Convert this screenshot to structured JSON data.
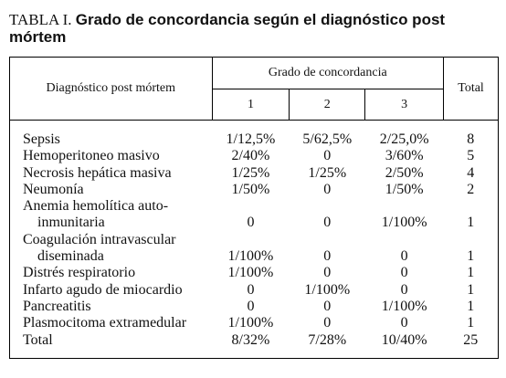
{
  "title": {
    "label": "TABLA I.",
    "text": "Grado de concordancia según el diagnóstico post mórtem"
  },
  "table": {
    "header": {
      "diagnosis": "Diagnóstico post mórtem",
      "grade": "Grado de concordancia",
      "grades": [
        "1",
        "2",
        "3"
      ],
      "total": "Total"
    },
    "rows": [
      {
        "label": [
          "Sepsis"
        ],
        "values": [
          "1/12,5%",
          "5/62,5%",
          "2/25,0%",
          "8"
        ]
      },
      {
        "label": [
          "Hemoperitoneo masivo"
        ],
        "values": [
          "2/40%",
          "0",
          "3/60%",
          "5"
        ]
      },
      {
        "label": [
          "Necrosis hepática masiva"
        ],
        "values": [
          "1/25%",
          "1/25%",
          "2/50%",
          "4"
        ]
      },
      {
        "label": [
          "Neumonía"
        ],
        "values": [
          "1/50%",
          "0",
          "1/50%",
          "2"
        ]
      },
      {
        "label": [
          "Anemia hemolítica auto-",
          "inmunitaria"
        ],
        "values": [
          "0",
          "0",
          "1/100%",
          "1"
        ]
      },
      {
        "label": [
          "Coagulación intravascular",
          "diseminada"
        ],
        "values": [
          "1/100%",
          "0",
          "0",
          "1"
        ]
      },
      {
        "label": [
          "Distrés respiratorio"
        ],
        "values": [
          "1/100%",
          "0",
          "0",
          "1"
        ]
      },
      {
        "label": [
          "Infarto agudo de miocardio"
        ],
        "values": [
          "0",
          "1/100%",
          "0",
          "1"
        ]
      },
      {
        "label": [
          "Pancreatitis"
        ],
        "values": [
          "0",
          "0",
          "1/100%",
          "1"
        ]
      },
      {
        "label": [
          "Plasmocitoma extramedular"
        ],
        "values": [
          "1/100%",
          "0",
          "0",
          "1"
        ]
      },
      {
        "label": [
          "Total"
        ],
        "values": [
          "8/32%",
          "7/28%",
          "10/40%",
          "25"
        ]
      }
    ]
  }
}
